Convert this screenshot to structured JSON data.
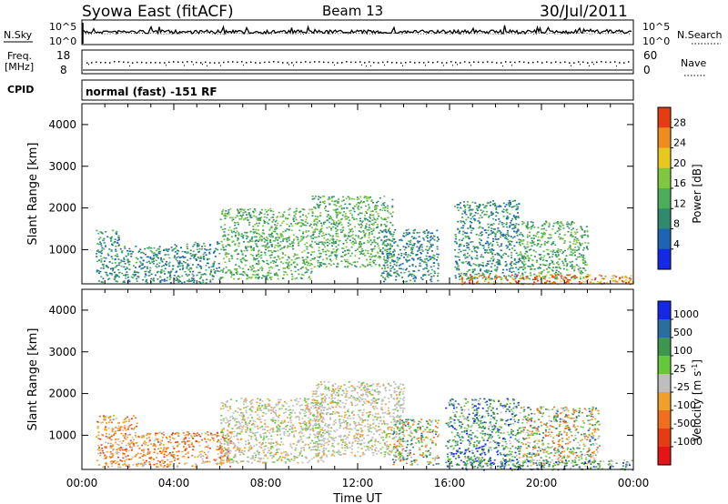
{
  "header": {
    "title": "Syowa East (fitACF)",
    "beam": "Beam 13",
    "date": "30/Jul/2011"
  },
  "top_panels": {
    "nsky_label": "N.Sky",
    "nsky_ticks": [
      "10^5",
      "10^0"
    ],
    "nsearch_label": "N.Search",
    "nsearch_ticks": [
      "10^5",
      "10^0"
    ],
    "freq_label_1": "Freq.",
    "freq_label_2": "[MHz]",
    "freq_ticks": [
      "18",
      "8"
    ],
    "nave_label": "Nave",
    "nave_ticks": [
      "60",
      "0"
    ],
    "cpid_label": "CPID",
    "cpid_text": "normal (fast) -151 RF"
  },
  "chart_data": [
    {
      "type": "heatmap",
      "name": "power",
      "ylabel": "Slant Range [km]",
      "yticks": [
        "4000",
        "3000",
        "2000",
        "1000"
      ],
      "yticks_values": [
        4000,
        3000,
        2000,
        1000
      ],
      "ylim": [
        180,
        4500
      ],
      "xlim": [
        0,
        24
      ],
      "colorbar_label": "Power [dB]",
      "colorbar_ticks": [
        "28",
        "24",
        "20",
        "16",
        "12",
        "8",
        "4"
      ],
      "colorbar_range": [
        0,
        32
      ],
      "colorbar_colors": [
        "#1428e6",
        "#1e64b4",
        "#2f8a6e",
        "#4cae5a",
        "#7ec840",
        "#e6c81e",
        "#f08c1e",
        "#e63c14"
      ],
      "regions": [
        {
          "t": [
            0.6,
            1.6
          ],
          "r": [
            220,
            1500
          ],
          "level": 2
        },
        {
          "t": [
            1.6,
            4.0
          ],
          "r": [
            220,
            1100
          ],
          "level": 2
        },
        {
          "t": [
            4.0,
            6.0
          ],
          "r": [
            220,
            1200
          ],
          "level": 2
        },
        {
          "t": [
            6.0,
            10.0
          ],
          "r": [
            300,
            2000
          ],
          "level": 3
        },
        {
          "t": [
            10.0,
            13.5
          ],
          "r": [
            600,
            2300
          ],
          "level": 3
        },
        {
          "t": [
            13.0,
            15.5
          ],
          "r": [
            250,
            1500
          ],
          "level": 2
        },
        {
          "t": [
            16.2,
            19.0
          ],
          "r": [
            300,
            2200
          ],
          "level": 2
        },
        {
          "t": [
            19.0,
            22.0
          ],
          "r": [
            300,
            1700
          ],
          "level": 3
        },
        {
          "t": [
            16.5,
            24.0
          ],
          "r": [
            180,
            420
          ],
          "level": 6
        }
      ]
    },
    {
      "type": "heatmap",
      "name": "velocity",
      "ylabel": "Slant Range [km]",
      "yticks": [
        "4000",
        "3000",
        "2000",
        "1000"
      ],
      "yticks_values": [
        4000,
        3000,
        2000,
        1000
      ],
      "ylim": [
        180,
        4500
      ],
      "xlim": [
        0,
        24
      ],
      "xlabel": "Time UT",
      "xticks": [
        "00:00",
        "04:00",
        "08:00",
        "12:00",
        "16:00",
        "20:00",
        "00:00"
      ],
      "colorbar_label": "Velocity [m s",
      "colorbar_label_sup": "-1",
      "colorbar_label_end": "]",
      "colorbar_ticks": [
        "1000",
        "500",
        "100",
        "25",
        "-25",
        "-100",
        "-500",
        "-1000"
      ],
      "colorbar_colors": [
        "#1428e6",
        "#2a6e9e",
        "#3c9650",
        "#64c83c",
        "#bebebe",
        "#f0a028",
        "#f06e1e",
        "#e63c14",
        "#e61414"
      ],
      "regions": [
        {
          "t": [
            0.6,
            2.4
          ],
          "r": [
            250,
            1500
          ],
          "cls": "neg"
        },
        {
          "t": [
            2.4,
            6.5
          ],
          "r": [
            250,
            1100
          ],
          "cls": "neg"
        },
        {
          "t": [
            6.0,
            10.5
          ],
          "r": [
            350,
            1900
          ],
          "cls": "gray"
        },
        {
          "t": [
            10.0,
            14.0
          ],
          "r": [
            500,
            2300
          ],
          "cls": "gray"
        },
        {
          "t": [
            13.5,
            15.5
          ],
          "r": [
            300,
            1400
          ],
          "cls": "mix"
        },
        {
          "t": [
            15.8,
            19.0
          ],
          "r": [
            250,
            1900
          ],
          "cls": "pos"
        },
        {
          "t": [
            19.0,
            22.5
          ],
          "r": [
            300,
            1700
          ],
          "cls": "mix"
        },
        {
          "t": [
            16.5,
            24.0
          ],
          "r": [
            180,
            420
          ],
          "cls": "pos"
        }
      ]
    }
  ]
}
